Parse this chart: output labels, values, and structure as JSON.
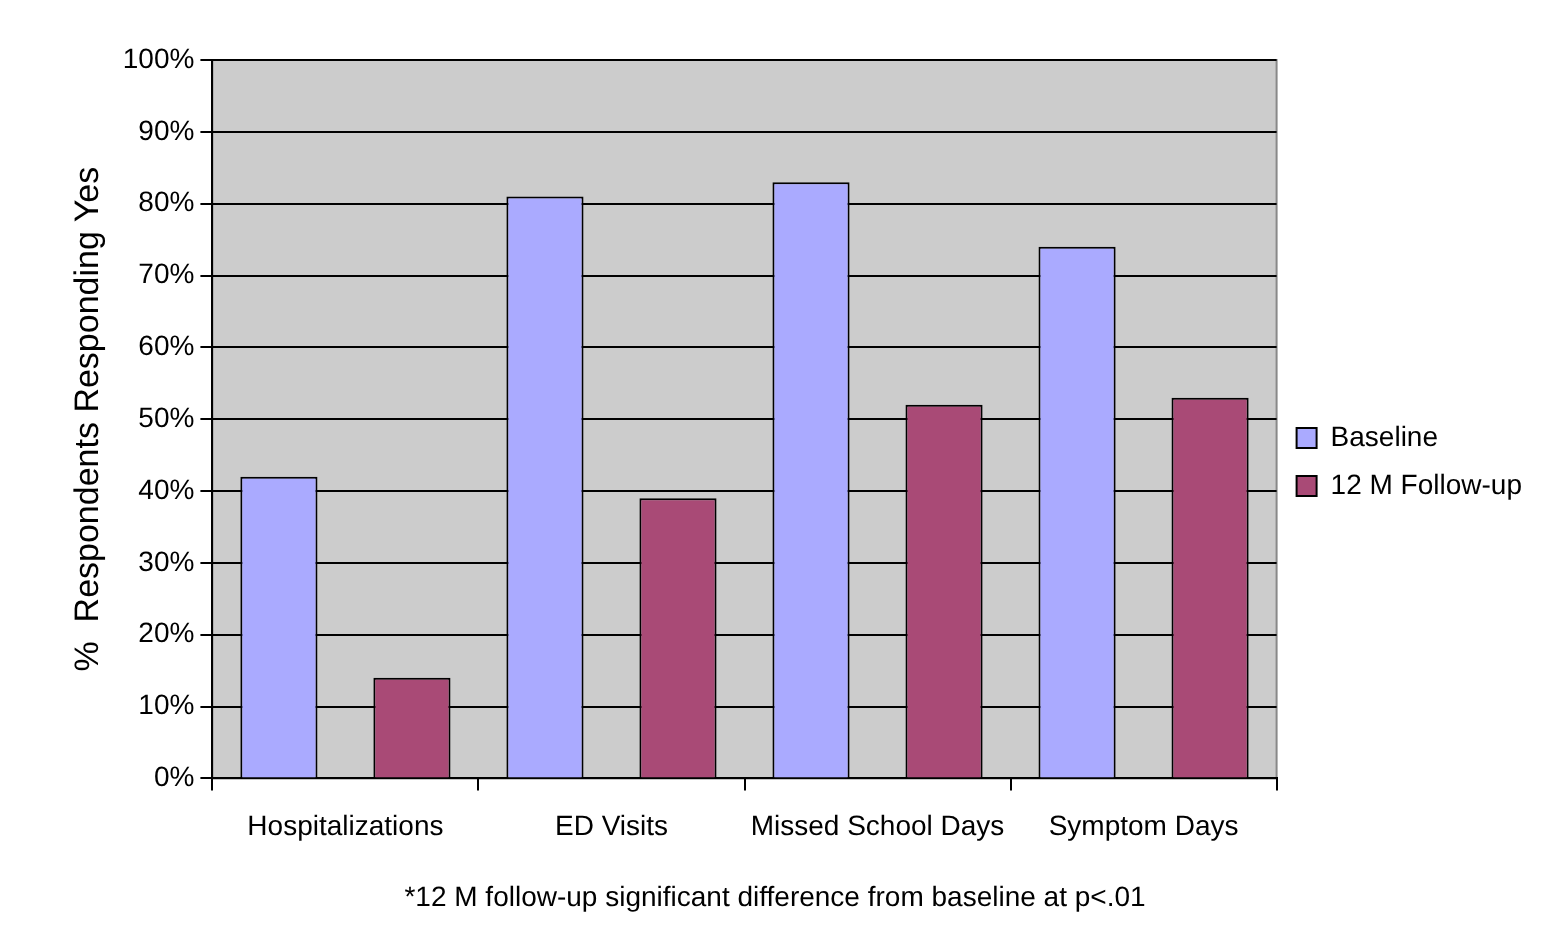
{
  "chart_data": {
    "type": "bar",
    "ylabel": "%  Respondents Responding Yes",
    "categories": [
      "Hospitalizations",
      "ED Visits",
      "Missed School Days",
      "Symptom Days"
    ],
    "series": [
      {
        "name": "Baseline",
        "color": "#aaaaff",
        "values": [
          42,
          81,
          83,
          74
        ]
      },
      {
        "name": "12 M Follow-up",
        "color": "#a94a76",
        "values": [
          14,
          39,
          52,
          53
        ]
      }
    ],
    "ylim": [
      0,
      100
    ],
    "yticks": [
      {
        "value": 0,
        "label": "0%"
      },
      {
        "value": 10,
        "label": "10%"
      },
      {
        "value": 20,
        "label": "20%"
      },
      {
        "value": 30,
        "label": "30%"
      },
      {
        "value": 40,
        "label": "40%"
      },
      {
        "value": 50,
        "label": "50%"
      },
      {
        "value": 60,
        "label": "60%"
      },
      {
        "value": 70,
        "label": "70%"
      },
      {
        "value": 80,
        "label": "80%"
      },
      {
        "value": 90,
        "label": "90%"
      },
      {
        "value": 100,
        "label": "100%"
      }
    ],
    "grid": "y",
    "legend": "right",
    "annotations": [
      "*12 M follow-up significant difference from baseline at p<.01"
    ]
  }
}
